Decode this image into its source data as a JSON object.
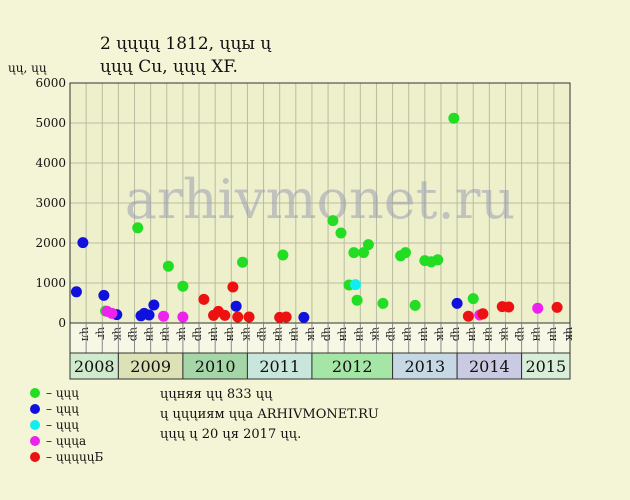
{
  "chart_data": {
    "type": "scatter",
    "title_line1": "2 ųųųų 1812, ųųы ų",
    "title_line2": "ųųų Cu, ųųų XF.",
    "ylabel": "ųų, ųų",
    "ylim": [
      0,
      6000
    ],
    "yticks": [
      0,
      1000,
      2000,
      3000,
      4000,
      5000,
      6000
    ],
    "grid": true,
    "watermark": "arhivmonet.ru",
    "month_labels": [
      "ųл",
      "ųг",
      "ųк",
      "ųр",
      "ųн",
      "ųн",
      "ųк",
      "ųр",
      "ųн",
      "ųн",
      "ųк",
      "ųр",
      "ųн",
      "ųн",
      "ųк",
      "ųр",
      "ųн",
      "ųн",
      "ųк",
      "ųр",
      "ųн",
      "ųн",
      "ųк",
      "ųр",
      "ųн",
      "ųн",
      "ųк",
      "ųр",
      "ųн",
      "ųн",
      "ųк"
    ],
    "years": [
      {
        "label": "2008",
        "start": 0,
        "end": 3,
        "color": "#cfeacc"
      },
      {
        "label": "2009",
        "start": 3,
        "end": 7,
        "color": "#dde2b6"
      },
      {
        "label": "2010",
        "start": 7,
        "end": 11,
        "color": "#a5d6a7"
      },
      {
        "label": "2011",
        "start": 11,
        "end": 15,
        "color": "#c9e6dc"
      },
      {
        "label": "2012",
        "start": 15,
        "end": 20,
        "color": "#a5e6a7"
      },
      {
        "label": "2013",
        "start": 20,
        "end": 24,
        "color": "#c5d8e4"
      },
      {
        "label": "2014",
        "start": 24,
        "end": 28,
        "color": "#cacbe2"
      },
      {
        "label": "2015",
        "start": 28,
        "end": 31,
        "color": "#d8eed8"
      }
    ],
    "series": [
      {
        "name": "– ųųų",
        "color": "#22dd22",
        "points": [
          [
            2.2,
            300
          ],
          [
            4.2,
            2380
          ],
          [
            6.1,
            1420
          ],
          [
            7.0,
            920
          ],
          [
            10.7,
            1520
          ],
          [
            13.2,
            1700
          ],
          [
            16.3,
            2560
          ],
          [
            16.8,
            2250
          ],
          [
            17.3,
            950
          ],
          [
            17.6,
            1760
          ],
          [
            17.8,
            570
          ],
          [
            18.2,
            1760
          ],
          [
            18.5,
            1960
          ],
          [
            19.4,
            490
          ],
          [
            20.5,
            1680
          ],
          [
            20.8,
            1760
          ],
          [
            21.4,
            440
          ],
          [
            22.0,
            1560
          ],
          [
            22.4,
            1530
          ],
          [
            22.8,
            1580
          ],
          [
            23.8,
            5120
          ],
          [
            25.0,
            610
          ]
        ]
      },
      {
        "name": "– ųųų",
        "color": "#1111dd",
        "points": [
          [
            0.4,
            780
          ],
          [
            0.8,
            2010
          ],
          [
            2.1,
            690
          ],
          [
            2.9,
            210
          ],
          [
            4.4,
            180
          ],
          [
            4.6,
            240
          ],
          [
            4.9,
            200
          ],
          [
            5.2,
            450
          ],
          [
            10.3,
            420
          ],
          [
            14.5,
            140
          ],
          [
            24.0,
            490
          ]
        ]
      },
      {
        "name": "– ųųų",
        "color": "#11eeee",
        "points": [
          [
            17.7,
            960
          ]
        ]
      },
      {
        "name": "– ųųųа",
        "color": "#ee22ee",
        "points": [
          [
            2.3,
            290
          ],
          [
            2.6,
            240
          ],
          [
            5.8,
            170
          ],
          [
            7.0,
            150
          ],
          [
            25.4,
            200
          ],
          [
            29.0,
            370
          ]
        ]
      },
      {
        "name": "– ųųųųųБ",
        "color": "#ee1111",
        "points": [
          [
            8.3,
            590
          ],
          [
            8.9,
            190
          ],
          [
            9.2,
            290
          ],
          [
            9.6,
            190
          ],
          [
            10.1,
            900
          ],
          [
            10.4,
            150
          ],
          [
            11.1,
            150
          ],
          [
            13.0,
            140
          ],
          [
            13.4,
            150
          ],
          [
            24.7,
            170
          ],
          [
            25.6,
            230
          ],
          [
            26.8,
            410
          ],
          [
            27.2,
            400
          ],
          [
            30.2,
            390
          ]
        ]
      }
    ]
  },
  "notes": {
    "line1": "ųųняя ųų 833 ųų",
    "line2": "ų ųųųиям ųųа ARHIVMONET.RU",
    "line3": "ųųų ų 20 ųя 2017 ųų."
  }
}
